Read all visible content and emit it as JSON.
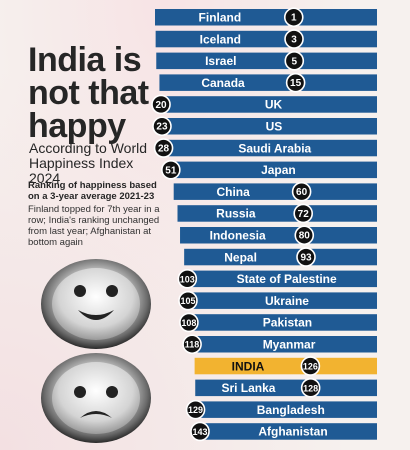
{
  "headline": "India is not that happy",
  "subtitle": "According to World Happiness Index 2024",
  "note_bold": "Ranking of happiness based on a 3-year average 2021-23",
  "note": "Finland topped for 7th year in a row; India's ranking unchanged from last year; Afghanistan at bottom again",
  "colors": {
    "bar": "#1f5a94",
    "highlight_bar": "#f2b330",
    "badge": "#111111",
    "badge_text": "#ffffff",
    "bar_text": "#ffffff",
    "highlight_text": "#111111"
  },
  "chart_data": {
    "type": "bar",
    "title": "India is not that happy",
    "subtitle": "According to World Happiness Index 2024",
    "xlabel": "",
    "ylabel": "",
    "categories": [
      "Finland",
      "Iceland",
      "Israel",
      "Canada",
      "UK",
      "US",
      "Saudi Arabia",
      "Japan",
      "China",
      "Russia",
      "Indonesia",
      "Nepal",
      "State of Palestine",
      "Ukraine",
      "Pakistan",
      "Myanmar",
      "INDIA",
      "Sri Lanka",
      "Bangladesh",
      "Afghanistan"
    ],
    "values": [
      1,
      3,
      5,
      15,
      20,
      23,
      28,
      51,
      60,
      72,
      80,
      93,
      103,
      105,
      108,
      118,
      126,
      128,
      129,
      143
    ],
    "badge_side": [
      "right",
      "right",
      "right",
      "right",
      "left",
      "left",
      "left",
      "left",
      "right",
      "right",
      "right",
      "right",
      "left",
      "left",
      "left",
      "left",
      "right",
      "right",
      "left",
      "left"
    ],
    "highlight": "INDIA"
  }
}
